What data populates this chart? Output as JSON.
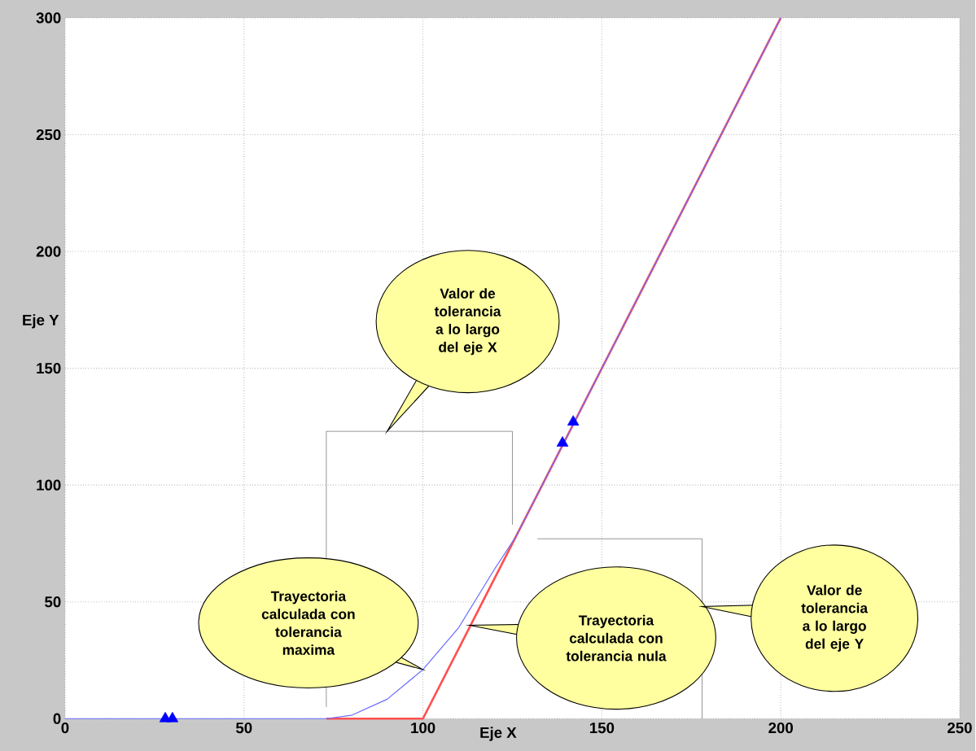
{
  "chart_data": {
    "type": "line",
    "xlabel": "Eje X",
    "ylabel": "Eje Y",
    "xlim": [
      0,
      250
    ],
    "ylim": [
      0,
      300
    ],
    "xticks": [
      0,
      50,
      100,
      150,
      200,
      250
    ],
    "yticks": [
      0,
      50,
      100,
      150,
      200,
      250,
      300
    ],
    "grid": true,
    "marker": "none",
    "series": [
      {
        "color": "#ff5050",
        "x": [
          73,
          100,
          200
        ],
        "values": [
          0,
          0,
          300
        ]
      },
      {
        "color": "#6a6aff",
        "x": [
          0,
          73,
          80,
          90,
          100,
          110,
          120,
          126,
          200
        ],
        "values": [
          0,
          0,
          1.4,
          8.3,
          21,
          39,
          64,
          78,
          300
        ]
      },
      {
        "type": "scatter",
        "marker": "triangle",
        "color": "#0000ff",
        "x": [
          28,
          30,
          139,
          142
        ],
        "values": [
          0,
          0,
          118,
          127
        ]
      },
      {
        "color": "#606060",
        "x": [
          73,
          73,
          125,
          125
        ],
        "values": [
          5,
          123,
          123,
          83
        ]
      },
      {
        "color": "#606060",
        "x": [
          132,
          178,
          178
        ],
        "values": [
          77,
          77,
          0
        ]
      }
    ],
    "annotations": [
      "Valor de tolerancia a lo largo del eje X",
      "Trayectoria calculada con tolerancia maxima",
      {
        "text": "Trayectoria calculada con tolerancia nula",
        "x": 113,
        "y": 40
      },
      {
        "text": "Valor de tolerancia a lo largo del eje Y",
        "x": 178,
        "y": 48
      }
    ]
  }
}
